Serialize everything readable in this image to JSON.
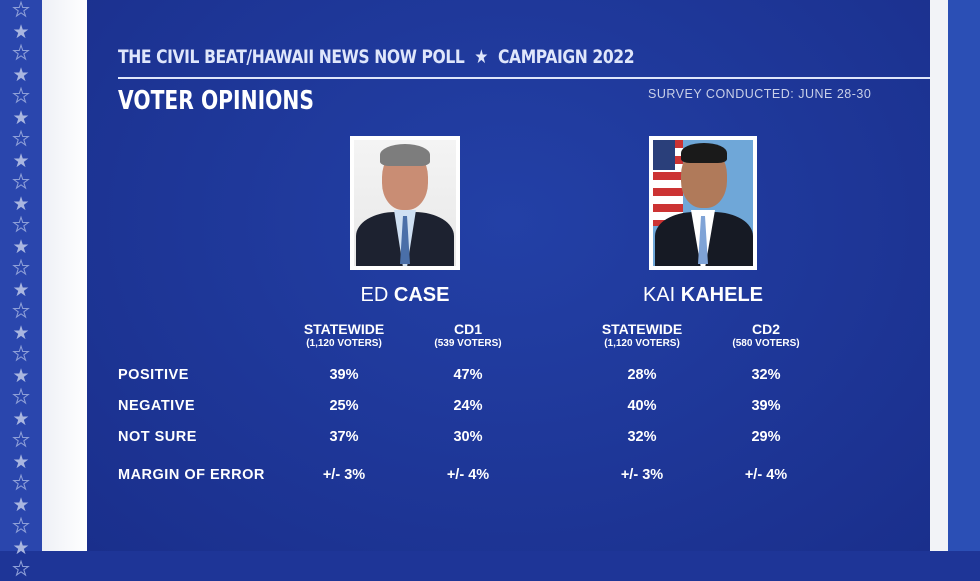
{
  "header": {
    "title": "THE CIVIL BEAT/HAWAII NEWS NOW POLL",
    "star": "★",
    "campaign": "CAMPAIGN 2022",
    "subtitle": "VOTER OPINIONS",
    "survey": "SURVEY CONDUCTED: JUNE 28-30"
  },
  "candidates": [
    {
      "first": "ED",
      "last": "CASE",
      "columns": [
        {
          "label": "STATEWIDE",
          "sub": "(1,120 VOTERS)"
        },
        {
          "label": "CD1",
          "sub": "(539 VOTERS)"
        }
      ]
    },
    {
      "first": "KAI",
      "last": "KAHELE",
      "columns": [
        {
          "label": "STATEWIDE",
          "sub": "(1,120 VOTERS)"
        },
        {
          "label": "CD2",
          "sub": "(580 VOTERS)"
        }
      ]
    }
  ],
  "rows": [
    {
      "label": "POSITIVE",
      "values": [
        "39%",
        "47%",
        "28%",
        "32%"
      ]
    },
    {
      "label": "NEGATIVE",
      "values": [
        "25%",
        "24%",
        "40%",
        "39%"
      ]
    },
    {
      "label": "NOT SURE",
      "values": [
        "37%",
        "30%",
        "32%",
        "29%"
      ]
    },
    {
      "label": "MARGIN OF ERROR",
      "values": [
        "+/- 3%",
        "+/- 4%",
        "+/- 3%",
        "+/- 4%"
      ]
    }
  ],
  "colors": {
    "panel": "#1e3597",
    "text": "#ffffff"
  }
}
